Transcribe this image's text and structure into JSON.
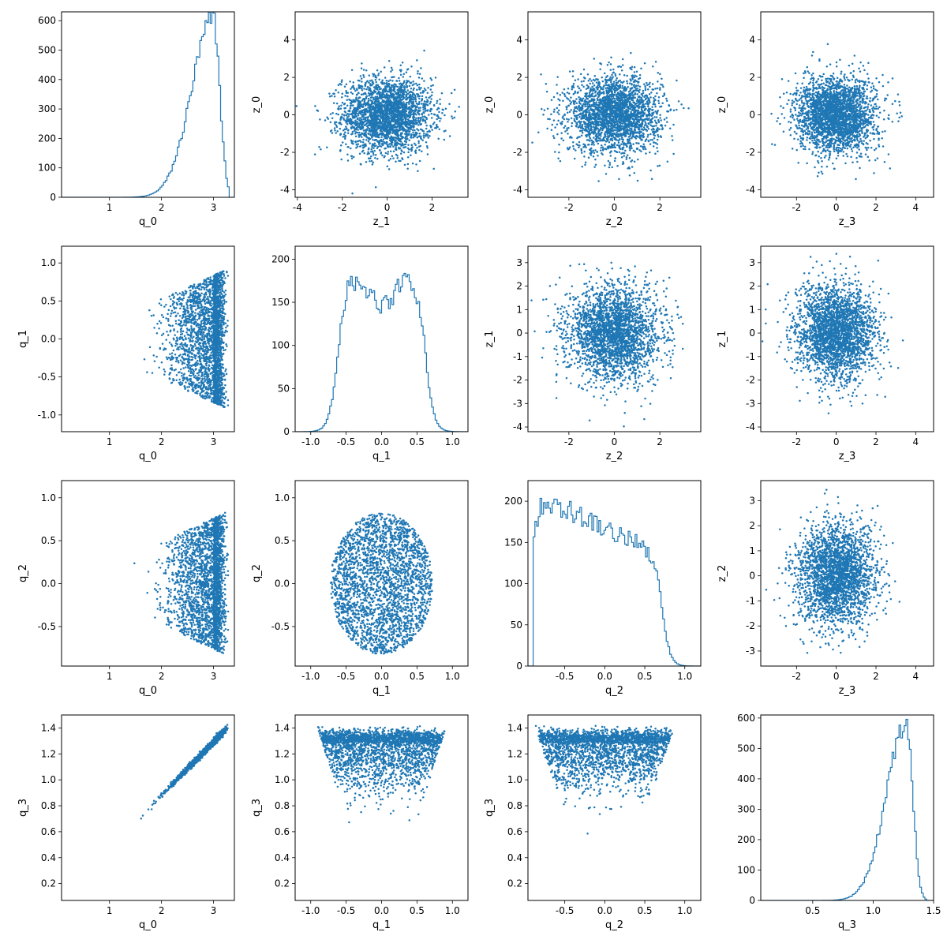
{
  "figure": {
    "layout": "4x4 corner plot",
    "marker_color": "#1f77b4"
  },
  "chart_data": [
    {
      "type": "histogram",
      "row": 0,
      "col": 0,
      "xlabel": "q_0",
      "ylabel": "",
      "xlim": [
        0.08,
        3.4
      ],
      "ylim": [
        0,
        630
      ],
      "xticks": [
        "1",
        "2",
        "3"
      ],
      "xtick_values": [
        1,
        2,
        3
      ],
      "yticks": [
        "0",
        "100",
        "200",
        "300",
        "400",
        "500",
        "600"
      ],
      "ytick_values": [
        0,
        100,
        200,
        300,
        400,
        500,
        600
      ],
      "dist": {
        "kind": "left-skew",
        "peak": 3.0,
        "sd_left": 0.42,
        "sd_right": 0.12,
        "min": 0.2,
        "max": 3.3,
        "peak_count": 605
      }
    },
    {
      "type": "scatter",
      "row": 0,
      "col": 1,
      "xlabel": "z_1",
      "ylabel": "z_0",
      "xlim": [
        -4.1,
        3.6
      ],
      "ylim": [
        -4.4,
        5.5
      ],
      "xticks": [
        "-4",
        "-2",
        "0",
        "2"
      ],
      "xtick_values": [
        -4,
        -2,
        0,
        2
      ],
      "yticks": [
        "-4",
        "-2",
        "0",
        "2",
        "4"
      ],
      "ytick_values": [
        -4,
        -2,
        0,
        2,
        4
      ],
      "cloud": {
        "kind": "normal",
        "sx": 1.0,
        "sy": 1.0,
        "mx": 0,
        "my": 0
      }
    },
    {
      "type": "scatter",
      "row": 0,
      "col": 2,
      "xlabel": "z_2",
      "ylabel": "z_0",
      "xlim": [
        -3.8,
        3.8
      ],
      "ylim": [
        -4.4,
        5.5
      ],
      "xticks": [
        "-2",
        "0",
        "2"
      ],
      "xtick_values": [
        -2,
        0,
        2
      ],
      "yticks": [
        "-4",
        "-2",
        "0",
        "2",
        "4"
      ],
      "ytick_values": [
        -4,
        -2,
        0,
        2,
        4
      ],
      "cloud": {
        "kind": "normal",
        "sx": 1.0,
        "sy": 1.0,
        "mx": 0,
        "my": 0
      }
    },
    {
      "type": "scatter",
      "row": 0,
      "col": 3,
      "xlabel": "z_3",
      "ylabel": "z_0",
      "xlim": [
        -3.8,
        4.9
      ],
      "ylim": [
        -4.4,
        5.5
      ],
      "xticks": [
        "-2",
        "0",
        "2",
        "4"
      ],
      "xtick_values": [
        -2,
        0,
        2,
        4
      ],
      "yticks": [
        "-4",
        "-2",
        "0",
        "2",
        "4"
      ],
      "ytick_values": [
        -4,
        -2,
        0,
        2,
        4
      ],
      "cloud": {
        "kind": "normal",
        "sx": 1.0,
        "sy": 1.0,
        "mx": 0,
        "my": 0
      }
    },
    {
      "type": "scatter",
      "row": 1,
      "col": 0,
      "xlabel": "q_0",
      "ylabel": "q_1",
      "xlim": [
        0.08,
        3.4
      ],
      "ylim": [
        -1.22,
        1.22
      ],
      "xticks": [
        "1",
        "2",
        "3"
      ],
      "xtick_values": [
        1,
        2,
        3
      ],
      "yticks": [
        "-1.0",
        "-0.5",
        "0.0",
        "0.5",
        "1.0"
      ],
      "ytick_values": [
        -1,
        -0.5,
        0,
        0.5,
        1
      ],
      "cloud": {
        "kind": "funnel",
        "spread": 0.9
      }
    },
    {
      "type": "histogram",
      "row": 1,
      "col": 1,
      "xlabel": "q_1",
      "ylabel": "",
      "xlim": [
        -1.22,
        1.22
      ],
      "ylim": [
        0,
        215
      ],
      "xticks": [
        "-1.0",
        "-0.5",
        "0.0",
        "0.5",
        "1.0"
      ],
      "xtick_values": [
        -1,
        -0.5,
        0,
        0.5,
        1
      ],
      "yticks": [
        "0",
        "50",
        "100",
        "150",
        "200"
      ],
      "ytick_values": [
        0,
        50,
        100,
        150,
        200
      ],
      "dist": {
        "kind": "bimodal",
        "min": -1.1,
        "max": 1.1,
        "edge": 0.62,
        "peak_count": 180
      }
    },
    {
      "type": "scatter",
      "row": 1,
      "col": 2,
      "xlabel": "z_2",
      "ylabel": "z_1",
      "xlim": [
        -3.8,
        3.8
      ],
      "ylim": [
        -4.2,
        3.7
      ],
      "xticks": [
        "-2",
        "0",
        "2"
      ],
      "xtick_values": [
        -2,
        0,
        2
      ],
      "yticks": [
        "-4",
        "-3",
        "-2",
        "-1",
        "0",
        "1",
        "2",
        "3"
      ],
      "ytick_values": [
        -4,
        -3,
        -2,
        -1,
        0,
        1,
        2,
        3
      ],
      "cloud": {
        "kind": "normal",
        "sx": 1.0,
        "sy": 1.0,
        "mx": 0,
        "my": 0
      }
    },
    {
      "type": "scatter",
      "row": 1,
      "col": 3,
      "xlabel": "z_3",
      "ylabel": "z_1",
      "xlim": [
        -3.8,
        4.9
      ],
      "ylim": [
        -4.2,
        3.7
      ],
      "xticks": [
        "-2",
        "0",
        "2",
        "4"
      ],
      "xtick_values": [
        -2,
        0,
        2,
        4
      ],
      "yticks": [
        "-4",
        "-3",
        "-2",
        "-1",
        "0",
        "1",
        "2",
        "3"
      ],
      "ytick_values": [
        -4,
        -3,
        -2,
        -1,
        0,
        1,
        2,
        3
      ],
      "cloud": {
        "kind": "normal",
        "sx": 1.0,
        "sy": 1.0,
        "mx": 0,
        "my": 0
      }
    },
    {
      "type": "scatter",
      "row": 2,
      "col": 0,
      "xlabel": "q_0",
      "ylabel": "q_2",
      "xlim": [
        0.08,
        3.4
      ],
      "ylim": [
        -0.96,
        1.2
      ],
      "xticks": [
        "1",
        "2",
        "3"
      ],
      "xtick_values": [
        1,
        2,
        3
      ],
      "yticks": [
        "-0.5",
        "0.0",
        "0.5",
        "1.0"
      ],
      "ytick_values": [
        -0.5,
        0,
        0.5,
        1
      ],
      "cloud": {
        "kind": "funnel",
        "spread": 0.82
      }
    },
    {
      "type": "scatter",
      "row": 2,
      "col": 1,
      "xlabel": "q_1",
      "ylabel": "q_2",
      "xlim": [
        -1.22,
        1.22
      ],
      "ylim": [
        -0.96,
        1.2
      ],
      "xticks": [
        "-1.0",
        "-0.5",
        "0.0",
        "0.5",
        "1.0"
      ],
      "xtick_values": [
        -1,
        -0.5,
        0,
        0.5,
        1
      ],
      "yticks": [
        "-0.5",
        "0.0",
        "0.5",
        "1.0"
      ],
      "ytick_values": [
        -0.5,
        0,
        0.5,
        1
      ],
      "cloud": {
        "kind": "disk",
        "rx": 0.72,
        "ry": 0.82
      }
    },
    {
      "type": "histogram",
      "row": 2,
      "col": 2,
      "xlabel": "q_2",
      "ylabel": "",
      "xlim": [
        -0.96,
        1.2
      ],
      "ylim": [
        0,
        225
      ],
      "xticks": [
        "-0.5",
        "0.0",
        "0.5",
        "1.0"
      ],
      "xtick_values": [
        -0.5,
        0,
        0.5,
        1
      ],
      "yticks": [
        "0",
        "50",
        "100",
        "150",
        "200"
      ],
      "ytick_values": [
        0,
        50,
        100,
        150,
        200
      ],
      "dist": {
        "kind": "slope",
        "min": -0.9,
        "max": 1.1,
        "left": -0.82,
        "right": 0.82,
        "peak_count": 190
      }
    },
    {
      "type": "scatter",
      "row": 2,
      "col": 3,
      "xlabel": "z_3",
      "ylabel": "z_2",
      "xlim": [
        -3.8,
        4.9
      ],
      "ylim": [
        -3.6,
        3.8
      ],
      "xticks": [
        "-2",
        "0",
        "2",
        "4"
      ],
      "xtick_values": [
        -2,
        0,
        2,
        4
      ],
      "yticks": [
        "-3",
        "-2",
        "-1",
        "0",
        "1",
        "2",
        "3"
      ],
      "ytick_values": [
        -3,
        -2,
        -1,
        0,
        1,
        2,
        3
      ],
      "cloud": {
        "kind": "normal",
        "sx": 1.0,
        "sy": 1.0,
        "mx": 0,
        "my": 0
      }
    },
    {
      "type": "scatter",
      "row": 3,
      "col": 0,
      "xlabel": "q_0",
      "ylabel": "q_3",
      "xlim": [
        0.08,
        3.4
      ],
      "ylim": [
        0.07,
        1.5
      ],
      "xticks": [
        "1",
        "2",
        "3"
      ],
      "xtick_values": [
        1,
        2,
        3
      ],
      "yticks": [
        "0.2",
        "0.4",
        "0.6",
        "0.8",
        "1.0",
        "1.2",
        "1.4"
      ],
      "ytick_values": [
        0.2,
        0.4,
        0.6,
        0.8,
        1,
        1.2,
        1.4
      ],
      "cloud": {
        "kind": "line"
      }
    },
    {
      "type": "scatter",
      "row": 3,
      "col": 1,
      "xlabel": "q_1",
      "ylabel": "q_3",
      "xlim": [
        -1.22,
        1.22
      ],
      "ylim": [
        0.07,
        1.5
      ],
      "xticks": [
        "-1.0",
        "-0.5",
        "0.0",
        "0.5",
        "1.0"
      ],
      "xtick_values": [
        -1,
        -0.5,
        0,
        0.5,
        1
      ],
      "yticks": [
        "0.2",
        "0.4",
        "0.6",
        "0.8",
        "1.0",
        "1.2",
        "1.4"
      ],
      "ytick_values": [
        0.2,
        0.4,
        0.6,
        0.8,
        1,
        1.2,
        1.4
      ],
      "cloud": {
        "kind": "vshape",
        "half": 0.9
      }
    },
    {
      "type": "scatter",
      "row": 3,
      "col": 2,
      "xlabel": "q_2",
      "ylabel": "q_3",
      "xlim": [
        -0.96,
        1.2
      ],
      "ylim": [
        0.07,
        1.5
      ],
      "xticks": [
        "-0.5",
        "0.0",
        "0.5",
        "1.0"
      ],
      "xtick_values": [
        -0.5,
        0,
        0.5,
        1
      ],
      "yticks": [
        "0.2",
        "0.4",
        "0.6",
        "0.8",
        "1.0",
        "1.2",
        "1.4"
      ],
      "ytick_values": [
        0.2,
        0.4,
        0.6,
        0.8,
        1,
        1.2,
        1.4
      ],
      "cloud": {
        "kind": "vshape",
        "half": 0.86
      }
    },
    {
      "type": "histogram",
      "row": 3,
      "col": 3,
      "xlabel": "q_3",
      "ylabel": "",
      "xlim": [
        0.07,
        1.5
      ],
      "ylim": [
        0,
        610
      ],
      "xticks": [
        "0.5",
        "1.0",
        "1.5"
      ],
      "xtick_values": [
        0.5,
        1,
        1.5
      ],
      "yticks": [
        "0",
        "100",
        "200",
        "300",
        "400",
        "500",
        "600"
      ],
      "ytick_values": [
        0,
        100,
        200,
        300,
        400,
        500,
        600
      ],
      "dist": {
        "kind": "left-skew",
        "peak": 1.28,
        "sd_left": 0.17,
        "sd_right": 0.05,
        "min": 0.15,
        "max": 1.44,
        "peak_count": 580
      }
    }
  ]
}
